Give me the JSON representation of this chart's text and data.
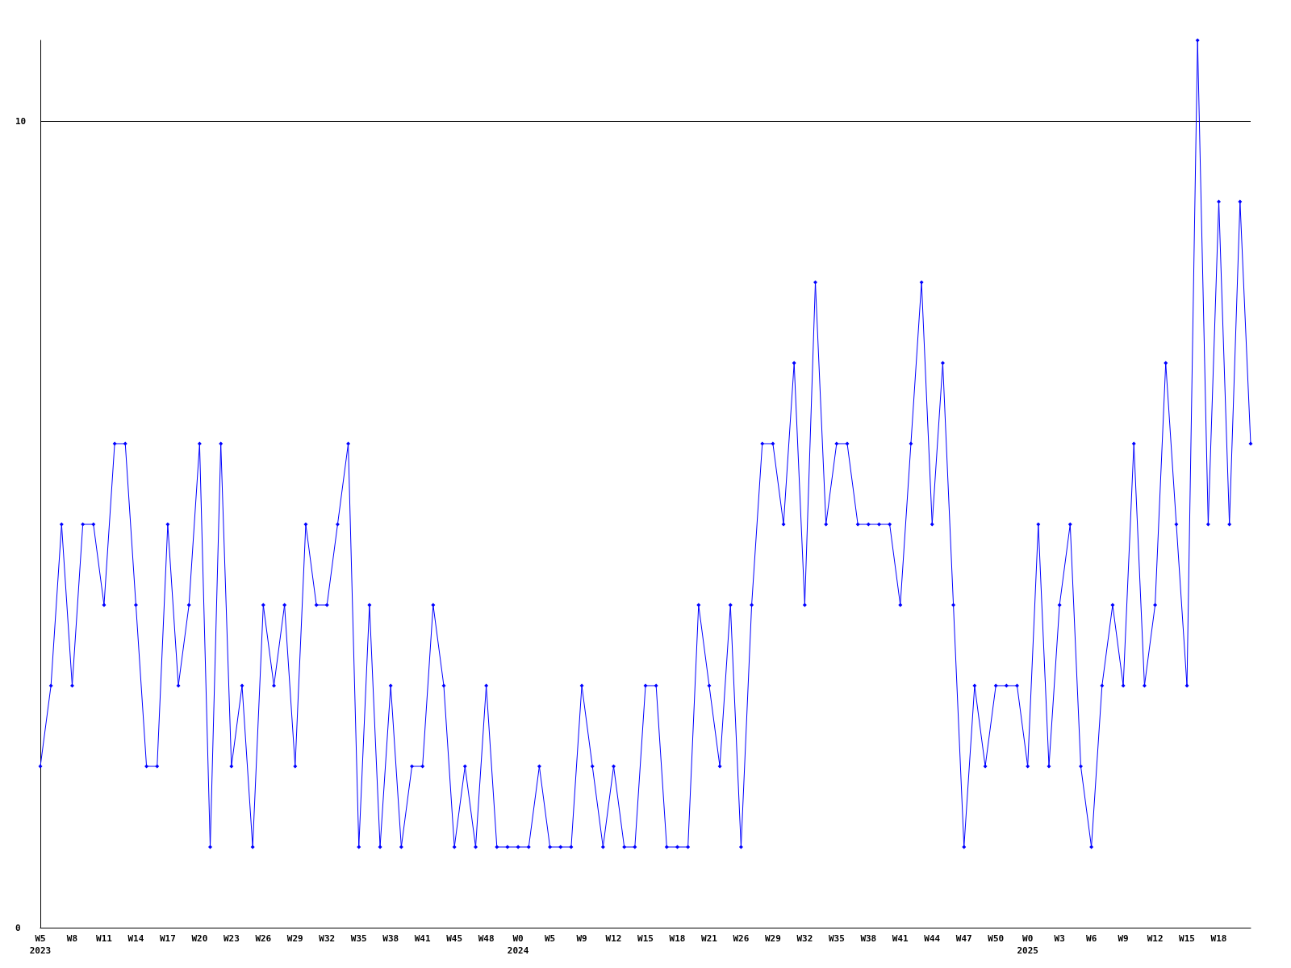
{
  "chart_data": {
    "type": "line",
    "categories": [
      "W5\n2023",
      null,
      null,
      "W8",
      null,
      null,
      "W11",
      null,
      null,
      "W14",
      null,
      null,
      "W17",
      null,
      null,
      "W20",
      null,
      null,
      "W23",
      null,
      null,
      "W26",
      null,
      null,
      "W29",
      null,
      null,
      "W32",
      null,
      null,
      "W35",
      null,
      null,
      "W38",
      null,
      null,
      "W41",
      null,
      null,
      "W45",
      null,
      null,
      "W48",
      null,
      null,
      "W0\n2024",
      null,
      null,
      "W5",
      null,
      null,
      "W9",
      null,
      null,
      "W12",
      null,
      null,
      "W15",
      null,
      null,
      "W18",
      null,
      null,
      "W21",
      null,
      null,
      "W26",
      null,
      null,
      "W29",
      null,
      null,
      "W32",
      null,
      null,
      "W35",
      null,
      null,
      "W38",
      null,
      null,
      "W41",
      null,
      null,
      "W44",
      null,
      null,
      "W47",
      null,
      null,
      "W50",
      null,
      null,
      "W0\n2025",
      null,
      null,
      "W3",
      null,
      null,
      "W6",
      null,
      null,
      "W9",
      null,
      null,
      "W12",
      null,
      null,
      "W15",
      null,
      null,
      "W18",
      null,
      null,
      null
    ],
    "series": [
      {
        "color": "#0000ff",
        "values": [
          2,
          3,
          5,
          3,
          5,
          5,
          4,
          6,
          6,
          4,
          2,
          2,
          5,
          3,
          4,
          6,
          1,
          6,
          2,
          3,
          1,
          4,
          3,
          4,
          2,
          5,
          4,
          4,
          5,
          6,
          1,
          4,
          1,
          3,
          1,
          2,
          2,
          4,
          3,
          1,
          2,
          1,
          3,
          1,
          1,
          1,
          1,
          2,
          1,
          1,
          1,
          3,
          2,
          1,
          2,
          1,
          1,
          3,
          3,
          1,
          1,
          1,
          4,
          3,
          2,
          4,
          1,
          4,
          6,
          6,
          5,
          7,
          4,
          8,
          5,
          6,
          6,
          5,
          5,
          5,
          5,
          4,
          6,
          8,
          5,
          7,
          4,
          1,
          3,
          2,
          3,
          3,
          3,
          2,
          5,
          2,
          4,
          5,
          2,
          1,
          3,
          4,
          3,
          6,
          3,
          4,
          7,
          5,
          3,
          11,
          5,
          9,
          5,
          9,
          6
        ]
      }
    ],
    "ylim": [
      0,
      11
    ],
    "yticks": [
      0,
      10
    ],
    "grid": "y",
    "marker": "diamond",
    "line_style": "solid"
  }
}
